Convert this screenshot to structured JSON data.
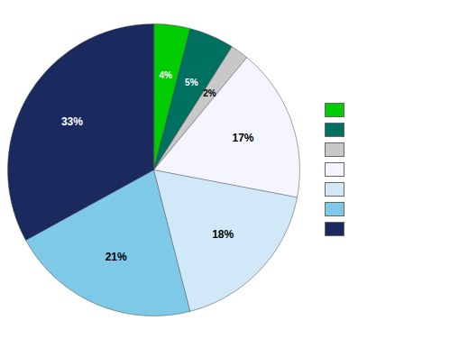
{
  "chart_data": {
    "type": "pie",
    "values": [
      4,
      5,
      2,
      17,
      18,
      21,
      33
    ],
    "value_labels": [
      "4%",
      "5%",
      "2%",
      "17%",
      "18%",
      "21%",
      "33%"
    ],
    "colors": [
      "#00cc00",
      "#007060",
      "#c8c8c8",
      "#f5f5ff",
      "#d0e8f8",
      "#7ec8e8",
      "#1a2a5e"
    ],
    "data_labels": true,
    "legend": "right",
    "tick_labels": false
  }
}
